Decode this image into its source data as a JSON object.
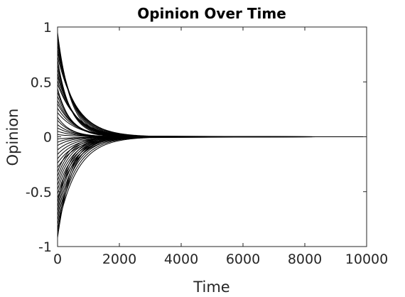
{
  "chart_data": {
    "type": "line",
    "title": "Opinion Over Time",
    "xlabel": "Time",
    "ylabel": "Opinion",
    "xlim": [
      0,
      10000
    ],
    "ylim": [
      -1,
      1
    ],
    "x_ticks": [
      "0",
      "2000",
      "4000",
      "6000",
      "8000",
      "10000"
    ],
    "y_ticks": [
      "-1",
      "-0.5",
      "0",
      "0.5",
      "1"
    ],
    "grid": false,
    "legend": "none",
    "line_color": "#000000",
    "series_description_values": {
      "initial_opinions": [
        0.95,
        0.92,
        0.88,
        0.84,
        0.8,
        0.77,
        0.73,
        0.7,
        0.66,
        0.62,
        0.58,
        0.55,
        0.51,
        0.48,
        0.44,
        0.41,
        0.37,
        0.33,
        0.3,
        0.26,
        0.22,
        0.18,
        0.15,
        0.11,
        0.08,
        0.05,
        0.02,
        -0.02,
        -0.05,
        -0.08,
        -0.12,
        -0.16,
        -0.2,
        -0.24,
        -0.28,
        -0.32,
        -0.36,
        -0.4,
        -0.44,
        -0.48,
        -0.52,
        -0.56,
        -0.6,
        -0.64,
        -0.68,
        -0.72,
        -0.76,
        -0.8,
        -0.84,
        -0.88,
        -0.92
      ],
      "convergence_value": 0,
      "convergence_time_approx": 2500,
      "long_tail_end_time": 8400
    }
  }
}
